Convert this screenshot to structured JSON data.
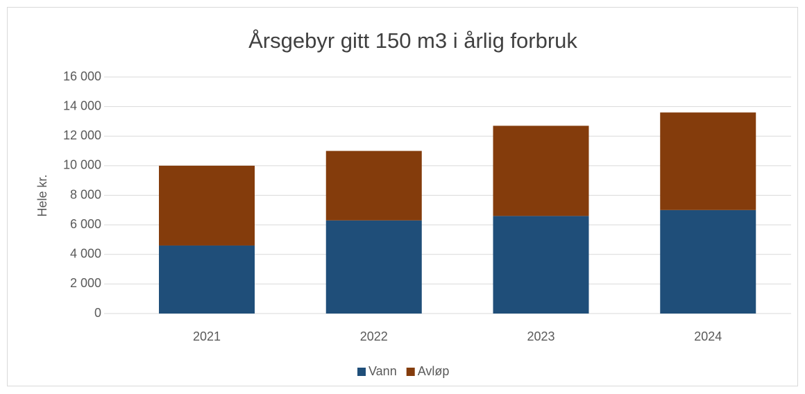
{
  "chart_data": {
    "type": "bar",
    "stacked": true,
    "title": "Årsgebyr gitt 150 m3 i årlig forbruk",
    "y_label": "Hele kr.",
    "categories": [
      "2021",
      "2022",
      "2023",
      "2024"
    ],
    "series": [
      {
        "name": "Vann",
        "color": "#1f4e79",
        "values": [
          4600,
          6300,
          6600,
          7000
        ]
      },
      {
        "name": "Avløp",
        "color": "#843c0c",
        "values": [
          5400,
          4700,
          6100,
          6600
        ]
      }
    ],
    "ylim": [
      0,
      16000
    ],
    "yticks": [
      0,
      {
        "value": 2000,
        "label": "2 000"
      },
      {
        "value": 4000,
        "label": "4 000"
      },
      {
        "value": 6000,
        "label": "6 000"
      },
      {
        "value": 8000,
        "label": "8 000"
      },
      {
        "value": 10000,
        "label": "10 000"
      },
      {
        "value": 12000,
        "label": "12 000"
      },
      {
        "value": 14000,
        "label": "14 000"
      },
      {
        "value": 16000,
        "label": "16 000"
      }
    ],
    "grid": true,
    "legend": "bottom"
  }
}
